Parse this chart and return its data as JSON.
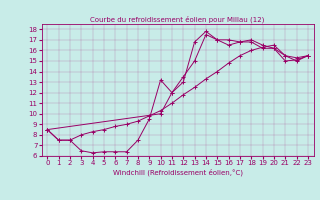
{
  "title": "Courbe du refroidissement éolien pour Millau (12)",
  "xlabel": "Windchill (Refroidissement éolien,°C)",
  "xlim": [
    -0.5,
    23.5
  ],
  "ylim": [
    6,
    18.5
  ],
  "yticks": [
    6,
    7,
    8,
    9,
    10,
    11,
    12,
    13,
    14,
    15,
    16,
    17,
    18
  ],
  "xticks": [
    0,
    1,
    2,
    3,
    4,
    5,
    6,
    7,
    8,
    9,
    10,
    11,
    12,
    13,
    14,
    15,
    16,
    17,
    18,
    19,
    20,
    21,
    22,
    23
  ],
  "background_color": "#c8ece8",
  "line_color": "#990066",
  "line1_x": [
    0,
    1,
    2,
    3,
    4,
    5,
    6,
    7,
    8,
    9,
    10,
    11,
    12,
    13,
    14,
    15,
    16,
    17,
    18,
    19,
    20,
    21,
    22,
    23
  ],
  "line1_y": [
    8.5,
    7.5,
    7.5,
    6.5,
    6.3,
    6.4,
    6.4,
    6.4,
    7.5,
    9.5,
    13.2,
    12.0,
    13.0,
    16.8,
    17.8,
    17.0,
    17.0,
    16.8,
    16.8,
    16.2,
    16.2,
    15.0,
    15.1,
    15.5
  ],
  "line2_x": [
    0,
    1,
    2,
    3,
    4,
    5,
    6,
    7,
    8,
    9,
    10,
    11,
    12,
    13,
    14,
    15,
    16,
    17,
    18,
    19,
    20,
    21,
    22,
    23
  ],
  "line2_y": [
    8.5,
    7.5,
    7.5,
    8.0,
    8.3,
    8.5,
    8.8,
    9.0,
    9.3,
    9.8,
    10.3,
    11.0,
    11.8,
    12.5,
    13.3,
    14.0,
    14.8,
    15.5,
    16.0,
    16.3,
    16.5,
    15.5,
    15.3,
    15.5
  ],
  "line3_x": [
    0,
    10,
    11,
    12,
    13,
    14,
    15,
    16,
    17,
    18,
    19,
    20,
    21,
    22,
    23
  ],
  "line3_y": [
    8.5,
    10.0,
    12.0,
    13.5,
    15.0,
    17.5,
    17.0,
    16.5,
    16.8,
    17.0,
    16.5,
    16.2,
    15.5,
    15.0,
    15.5
  ],
  "title_fontsize": 5,
  "label_fontsize": 5,
  "tick_fontsize": 5
}
